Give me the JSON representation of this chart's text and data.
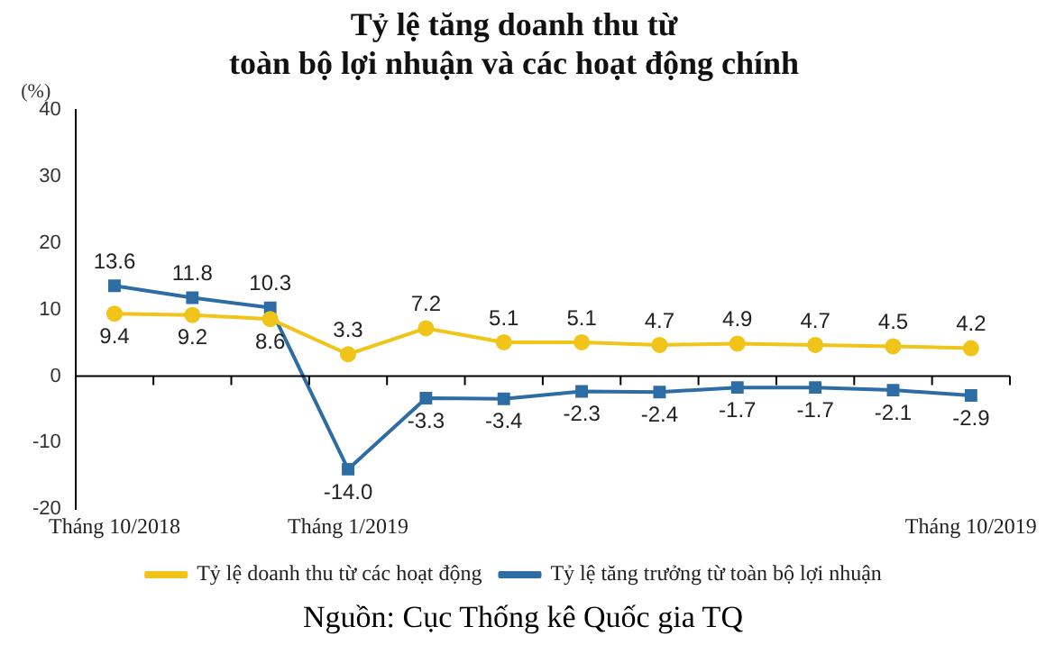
{
  "chart_data": {
    "type": "line",
    "title": "Tỷ lệ tăng doanh thu từ\ntoàn bộ lợi nhuận và các hoạt động chính",
    "ylabel": "(%)",
    "categories": [
      "Tháng 10/2018",
      null,
      null,
      "Tháng 1/2019",
      null,
      null,
      null,
      null,
      null,
      null,
      null,
      "Tháng 10/2019"
    ],
    "series": [
      {
        "name": "Tỷ lệ doanh thu từ các hoạt động",
        "color": "#f0c419",
        "marker": "circle",
        "values": [
          9.4,
          9.2,
          8.6,
          3.3,
          7.2,
          5.1,
          5.1,
          4.7,
          4.9,
          4.7,
          4.5,
          4.2
        ],
        "value_labels": [
          "9.4",
          "9.2",
          "8.6",
          "3.3",
          "7.2",
          "5.1",
          "5.1",
          "4.7",
          "4.9",
          "4.7",
          "4.5",
          "4.2"
        ]
      },
      {
        "name": "Tỷ lệ tăng trưởng từ toàn bộ lợi nhuận",
        "color": "#2e6ca4",
        "marker": "square",
        "values": [
          13.6,
          11.8,
          10.3,
          -14.0,
          -3.3,
          -3.4,
          -2.3,
          -2.4,
          -1.7,
          -1.7,
          -2.1,
          -2.9
        ],
        "value_labels": [
          "13.6",
          "11.8",
          "10.3",
          "-14.0",
          "-3.3",
          "-3.4",
          "-2.3",
          "-2.4",
          "-1.7",
          "-1.7",
          "-2.1",
          "-2.9"
        ]
      }
    ],
    "ylim": [
      -20,
      40
    ],
    "yticks": [
      -20,
      -10,
      0,
      10,
      20,
      30,
      40
    ],
    "grid": false,
    "legend": "bottom",
    "line_style": "solid",
    "ref_lines": [
      {
        "axis": "y",
        "value": 0,
        "color": "#000000"
      }
    ],
    "annotations": [
      "Nguồn: Cục Thống kê Quốc gia TQ"
    ]
  }
}
